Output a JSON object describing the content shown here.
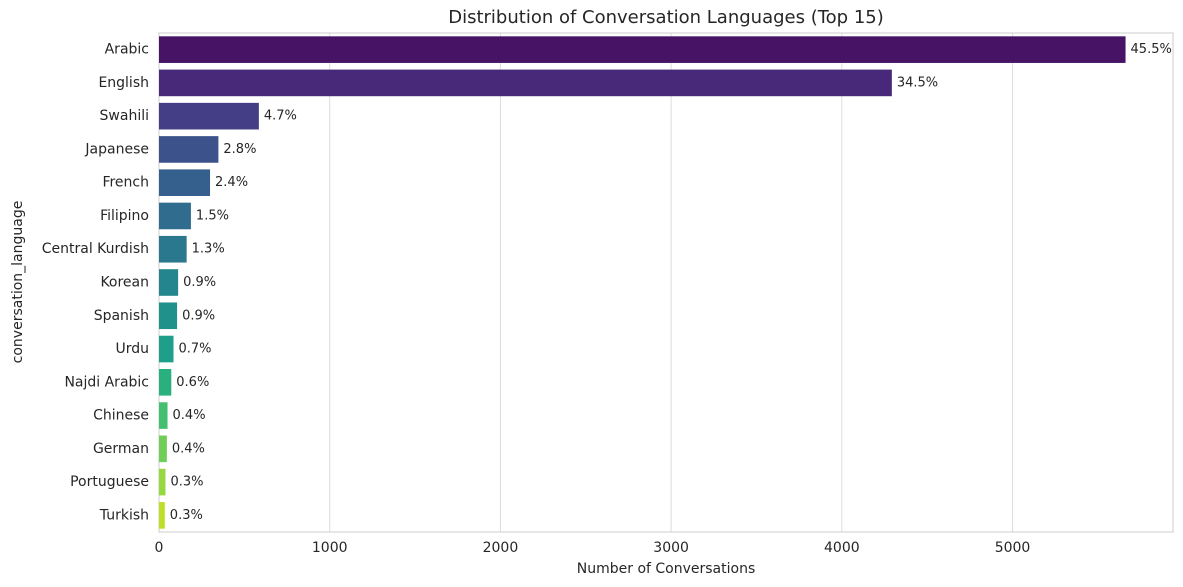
{
  "chart_data": {
    "type": "barh",
    "title": "Distribution of Conversation Languages (Top 15)",
    "x_label": "Number of Conversations",
    "y_label": "conversation_language",
    "categories": [
      "Arabic",
      "English",
      "Swahili",
      "Japanese",
      "French",
      "Filipino",
      "Central Kurdish",
      "Korean",
      "Spanish",
      "Urdu",
      "Najdi Arabic",
      "Chinese",
      "German",
      "Portuguese",
      "Turkish"
    ],
    "values": [
      5662,
      4293,
      585,
      348,
      299,
      187,
      162,
      112,
      106,
      85,
      72,
      50,
      46,
      38,
      34
    ],
    "percentage_labels": [
      "45.5%",
      "34.5%",
      "4.7%",
      "2.8%",
      "2.4%",
      "1.5%",
      "1.3%",
      "0.9%",
      "0.9%",
      "0.7%",
      "0.6%",
      "0.4%",
      "0.4%",
      "0.3%",
      "0.3%"
    ],
    "colors": [
      "#471365",
      "#482878",
      "#433e85",
      "#3b528b",
      "#355f8d",
      "#2f6c8e",
      "#2a788e",
      "#25858e",
      "#21918c",
      "#1f9e89",
      "#2ab07f",
      "#44bf70",
      "#6ece58",
      "#95d840",
      "#bddf26"
    ],
    "xlim": [
      0,
      5940
    ],
    "xticks": [
      0,
      1000,
      2000,
      3000,
      4000,
      5000
    ],
    "grid": true
  }
}
